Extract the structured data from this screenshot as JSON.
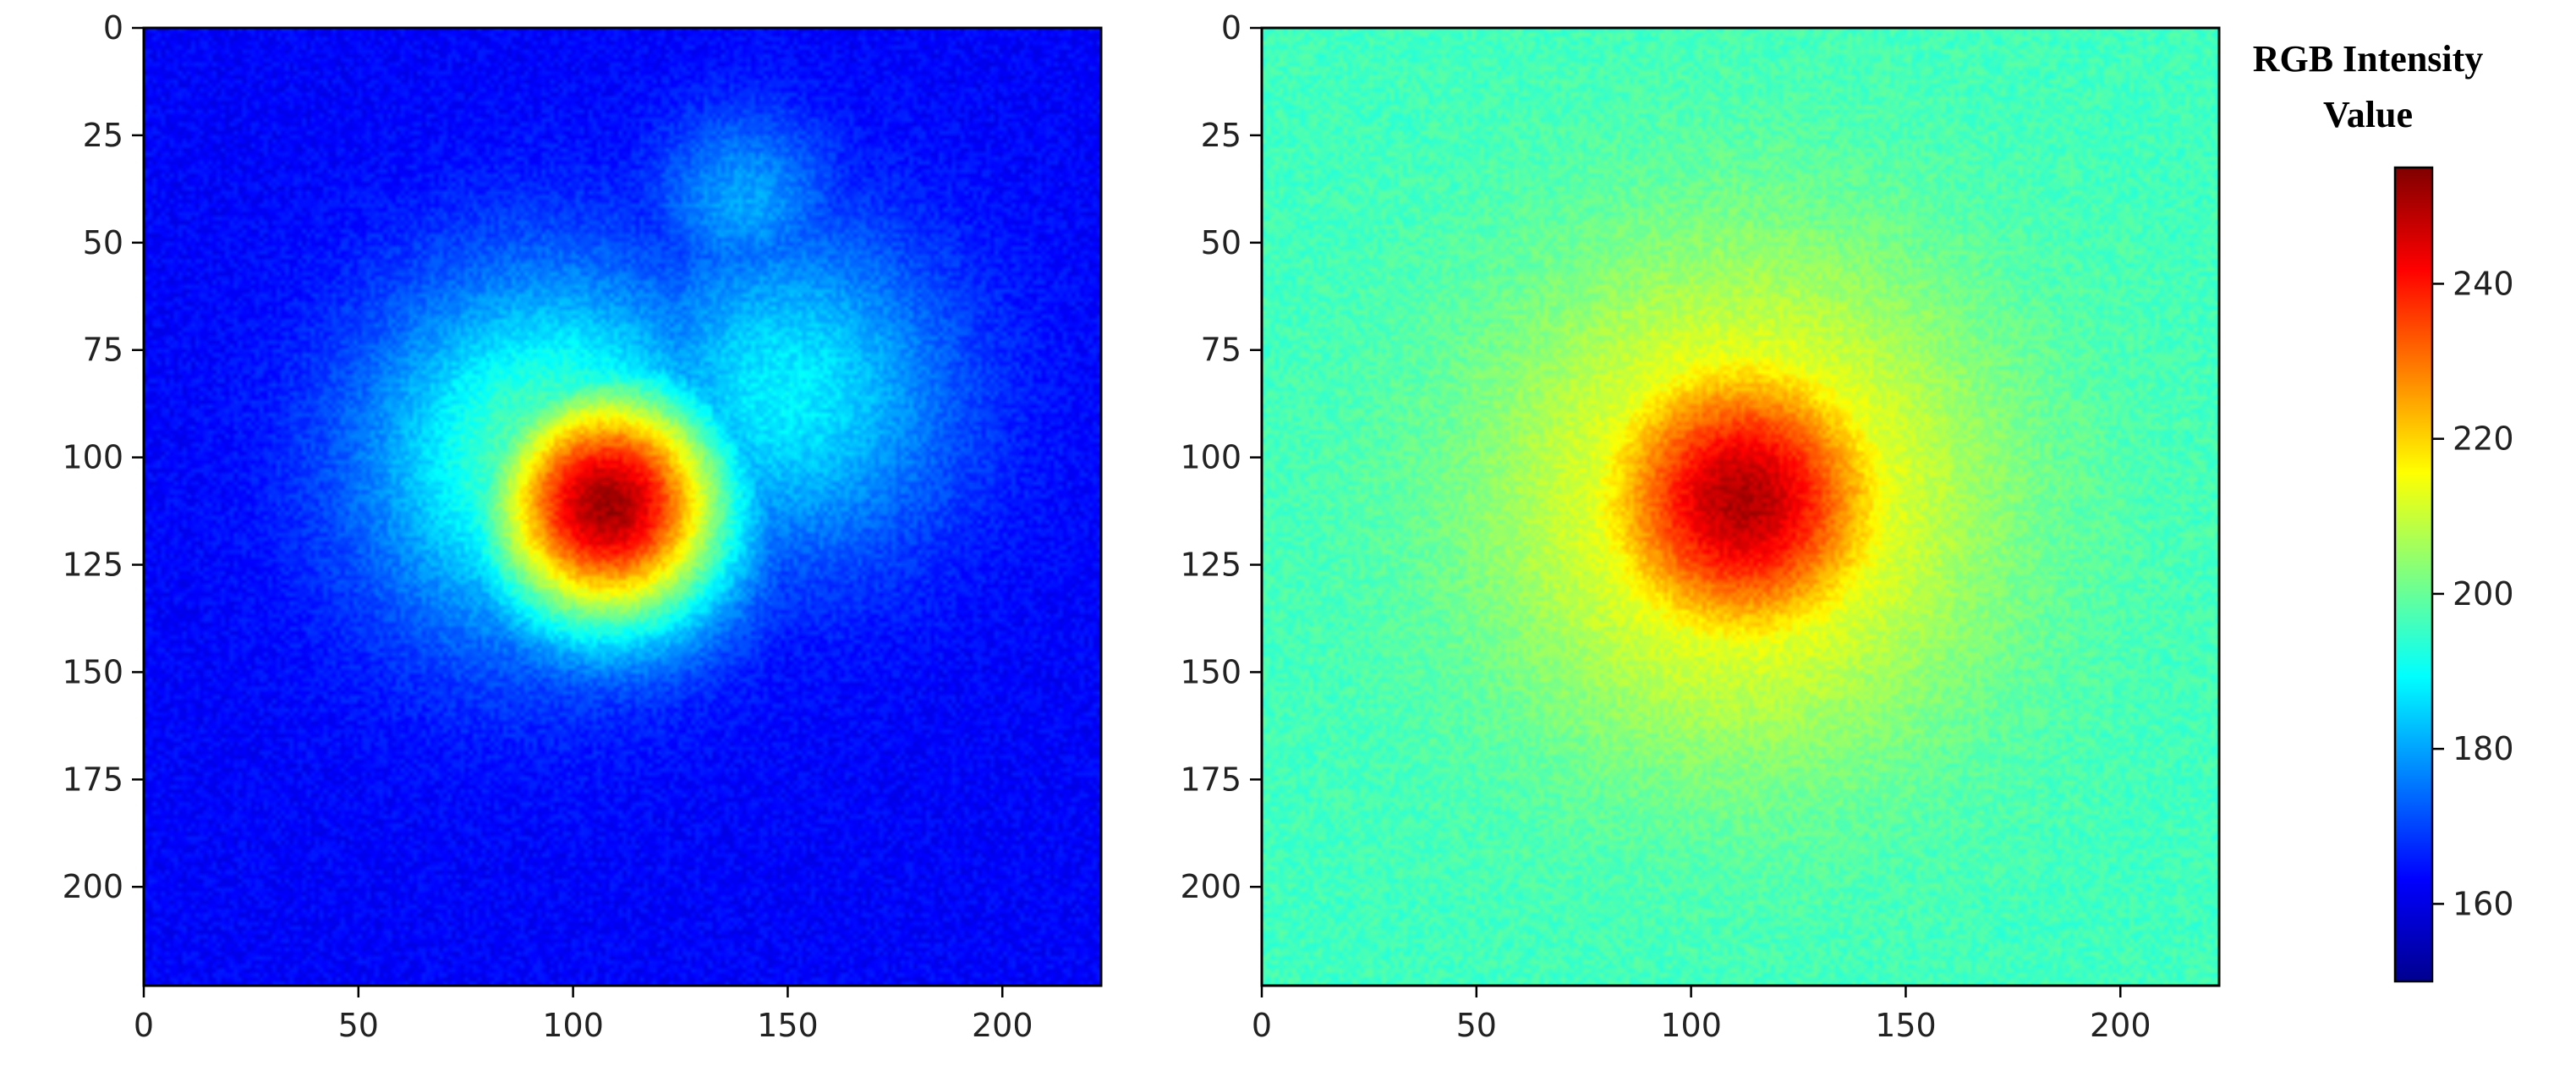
{
  "colorbar": {
    "title_line1": "RGB Intensity",
    "title_line2": "Value",
    "ticks": [
      160,
      180,
      200,
      220,
      240
    ],
    "range": [
      150,
      255
    ]
  },
  "colormap": "jet",
  "chart_data": [
    {
      "type": "heatmap",
      "xlabel": "",
      "ylabel": "",
      "xlim": [
        0,
        223
      ],
      "ylim": [
        223,
        0
      ],
      "xticks": [
        0,
        50,
        100,
        150,
        200
      ],
      "yticks": [
        0,
        25,
        50,
        75,
        100,
        125,
        150,
        175,
        200
      ],
      "background_value": 163,
      "hotspots": [
        {
          "x": 108,
          "y": 111,
          "peak": 252,
          "radius": 40
        },
        {
          "x": 95,
          "y": 100,
          "peak": 200,
          "radius": 60
        },
        {
          "x": 150,
          "y": 85,
          "peak": 188,
          "radius": 55
        },
        {
          "x": 140,
          "y": 40,
          "peak": 180,
          "radius": 30
        }
      ]
    },
    {
      "type": "heatmap",
      "xlabel": "",
      "ylabel": "",
      "xlim": [
        0,
        223
      ],
      "ylim": [
        223,
        0
      ],
      "xticks": [
        0,
        50,
        100,
        150,
        200
      ],
      "yticks": [
        0,
        25,
        50,
        75,
        100,
        125,
        150,
        175,
        200
      ],
      "background_value": 196,
      "hotspots": [
        {
          "x": 112,
          "y": 110,
          "peak": 250,
          "radius": 45
        },
        {
          "x": 112,
          "y": 110,
          "peak": 220,
          "radius": 80
        }
      ]
    }
  ]
}
